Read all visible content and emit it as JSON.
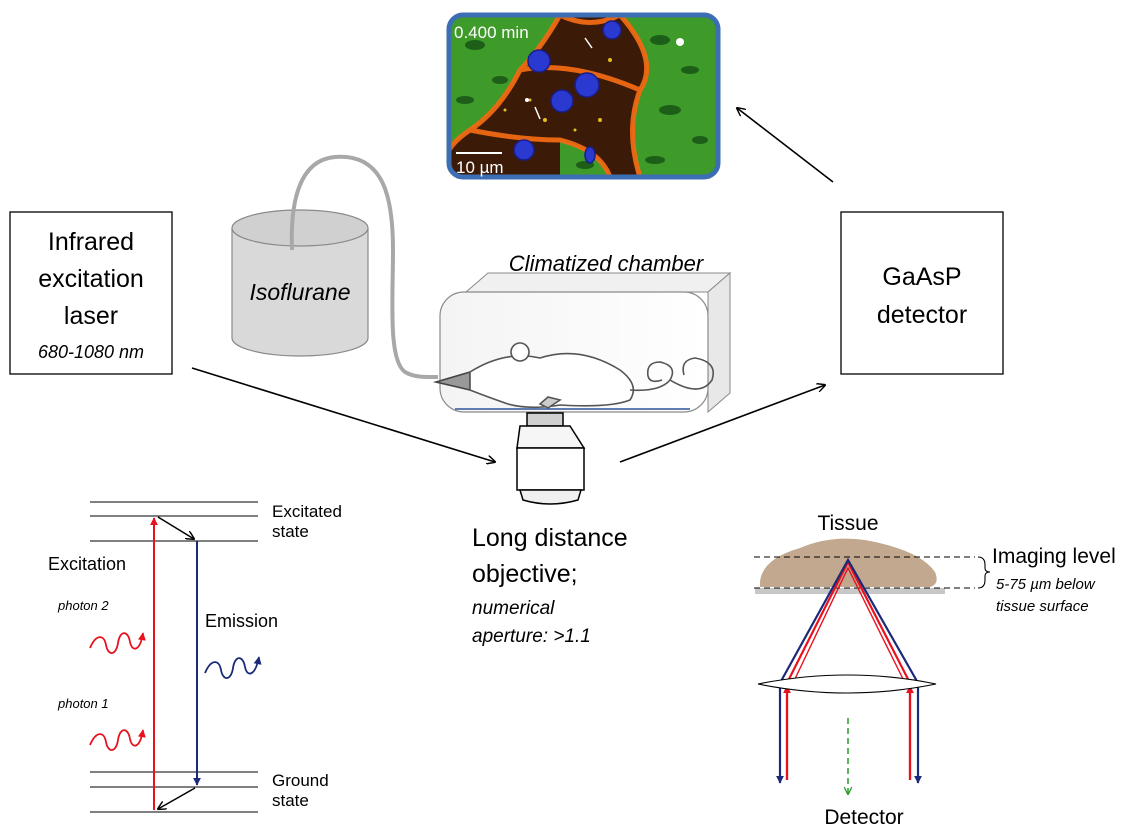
{
  "micrograph": {
    "time_label": "0.400 min",
    "scale_label": "10 µm"
  },
  "laser_box": {
    "line1": "Infrared",
    "line2": "excitation",
    "line3": "laser",
    "range": "680-1080 nm"
  },
  "anesthetic": {
    "label": "Isoflurane"
  },
  "chamber": {
    "label": "Climatized chamber"
  },
  "detector_box": {
    "line1": "GaAsP",
    "line2": "detector"
  },
  "objective": {
    "line1": "Long distance",
    "line2": "objective;",
    "line3": "numerical",
    "line4": "aperture: >1.1"
  },
  "jablonski": {
    "excited_line1": "Excitated",
    "excited_line2": "state",
    "ground_line1": "Ground",
    "ground_line2": "state",
    "excitation": "Excitation",
    "emission": "Emission",
    "photon2": "photon 2",
    "photon1": "photon 1"
  },
  "optics": {
    "tissue": "Tissue",
    "imaging_level": "Imaging level",
    "depth_line1": "5-75 µm below",
    "depth_line2": "tissue surface",
    "detector": "Detector"
  },
  "colors": {
    "excitation_red": "#e8121e",
    "emission_blue": "#1a2a78",
    "frame_blue": "#3d6eb4",
    "tissue_tan": "#c2a88e",
    "cylinder_gray": "#d9d9d9",
    "detector_arrow_green": "#2a9a2a"
  }
}
